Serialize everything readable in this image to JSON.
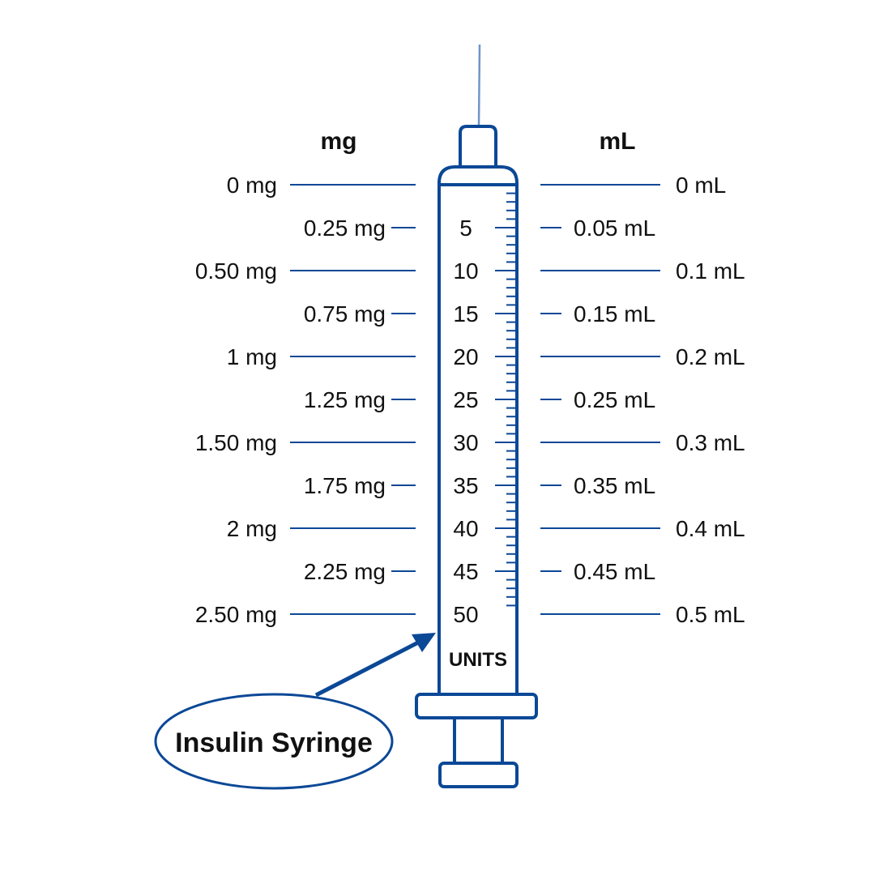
{
  "headers": {
    "mg": "mg",
    "ml": "mL"
  },
  "mg_labels": [
    "0 mg",
    "0.25 mg",
    "0.50 mg",
    "0.75 mg",
    "1 mg",
    "1.25 mg",
    "1.50 mg",
    "1.75 mg",
    "2 mg",
    "2.25 mg",
    "2.50 mg"
  ],
  "ml_labels": [
    "0 mL",
    "0.05 mL",
    "0.1 mL",
    "0.15 mL",
    "0.2 mL",
    "0.25 mL",
    "0.3 mL",
    "0.35 mL",
    "0.4 mL",
    "0.45 mL",
    "0.5 mL"
  ],
  "unit_labels": [
    "",
    "5",
    "10",
    "15",
    "20",
    "25",
    "30",
    "35",
    "40",
    "45",
    "50"
  ],
  "units_label": "UNITS",
  "callout": "Insulin Syringe",
  "max_units": 50,
  "colors": {
    "outline": "#0b4896",
    "needle": "#6f95c8",
    "text": "#111111"
  }
}
